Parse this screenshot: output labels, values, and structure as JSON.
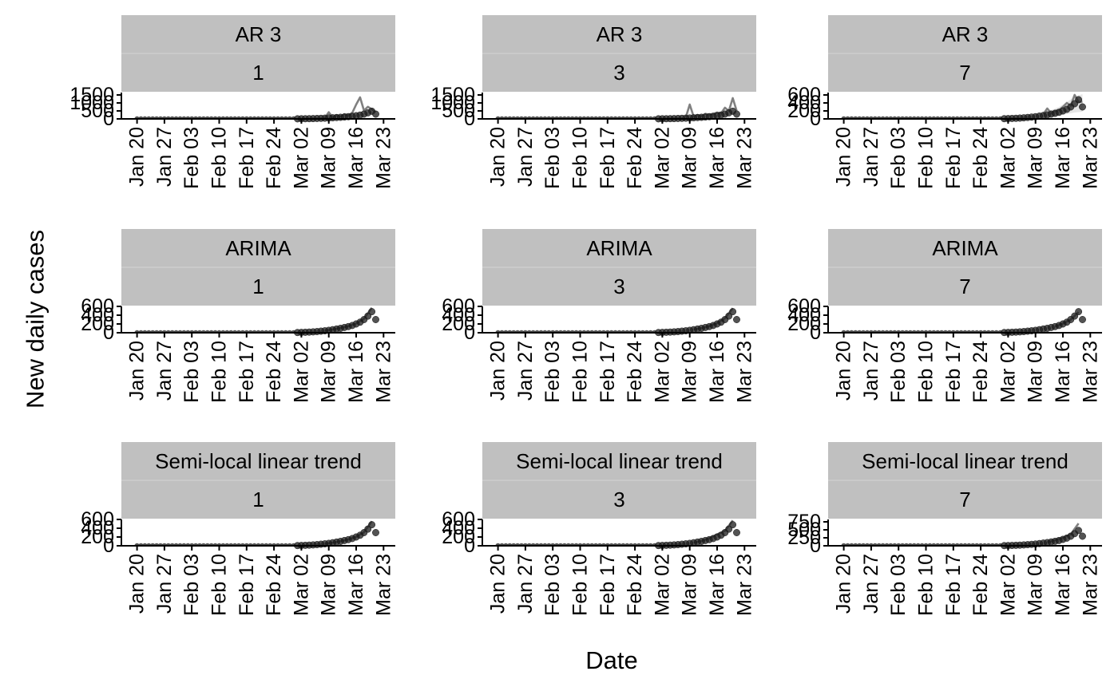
{
  "figure": {
    "ylabel": "New daily cases",
    "xlabel": "Date",
    "colors": {
      "strip": "#c0c0c0",
      "strip_separator": "#d4d4d4",
      "panel_background": "#ffffff",
      "axis": "#000000",
      "points": "#1a1a1a",
      "forecast_line": "#808080",
      "forecast_band": "#e6e6e6"
    }
  },
  "chart_data": [
    {
      "type": "line",
      "strip_top": "AR 3",
      "strip_bottom": "1",
      "x_ticks": [
        "Jan 20",
        "Jan 27",
        "Feb 03",
        "Feb 10",
        "Feb 17",
        "Feb 24",
        "Mar 02",
        "Mar 09",
        "Mar 16",
        "Mar 23"
      ],
      "y_ticks": [
        0,
        500,
        1000,
        1500
      ],
      "y_tick_labels": [
        "0",
        "500",
        "1000",
        "1500"
      ],
      "ylim": [
        0,
        1650
      ],
      "series": [
        {
          "role": "observed",
          "display": "points",
          "x": [
            "2020-03-01",
            "2020-03-02",
            "2020-03-03",
            "2020-03-04",
            "2020-03-05",
            "2020-03-06",
            "2020-03-07",
            "2020-03-08",
            "2020-03-09",
            "2020-03-10",
            "2020-03-11",
            "2020-03-12",
            "2020-03-13",
            "2020-03-14",
            "2020-03-15",
            "2020-03-16",
            "2020-03-17",
            "2020-03-18",
            "2020-03-19",
            "2020-03-20",
            "2020-03-21"
          ],
          "y": [
            5,
            8,
            11,
            15,
            20,
            27,
            36,
            45,
            55,
            70,
            85,
            100,
            120,
            140,
            165,
            200,
            240,
            300,
            380,
            480,
            300
          ]
        },
        {
          "role": "forecast",
          "display": "line",
          "x": [
            "2020-03-08",
            "2020-03-09",
            "2020-03-10",
            "2020-03-11",
            "2020-03-12",
            "2020-03-13",
            "2020-03-14",
            "2020-03-15",
            "2020-03-16",
            "2020-03-17",
            "2020-03-18",
            "2020-03-19",
            "2020-03-20",
            "2020-03-21"
          ],
          "y": [
            60,
            420,
            80,
            240,
            150,
            300,
            220,
            380,
            900,
            1350,
            520,
            760,
            600,
            420
          ]
        }
      ]
    },
    {
      "type": "line",
      "strip_top": "AR 3",
      "strip_bottom": "3",
      "x_ticks": [
        "Jan 20",
        "Jan 27",
        "Feb 03",
        "Feb 10",
        "Feb 17",
        "Feb 24",
        "Mar 02",
        "Mar 09",
        "Mar 16",
        "Mar 23"
      ],
      "y_ticks": [
        0,
        500,
        1000,
        1500
      ],
      "y_tick_labels": [
        "0",
        "500",
        "1000",
        "1500"
      ],
      "ylim": [
        0,
        1650
      ],
      "series": [
        {
          "role": "observed",
          "display": "points",
          "x": [
            "2020-03-01",
            "2020-03-02",
            "2020-03-03",
            "2020-03-04",
            "2020-03-05",
            "2020-03-06",
            "2020-03-07",
            "2020-03-08",
            "2020-03-09",
            "2020-03-10",
            "2020-03-11",
            "2020-03-12",
            "2020-03-13",
            "2020-03-14",
            "2020-03-15",
            "2020-03-16",
            "2020-03-17",
            "2020-03-18",
            "2020-03-19",
            "2020-03-20",
            "2020-03-21"
          ],
          "y": [
            5,
            8,
            11,
            15,
            20,
            27,
            36,
            45,
            55,
            70,
            85,
            100,
            120,
            140,
            165,
            200,
            240,
            300,
            380,
            480,
            300
          ]
        },
        {
          "role": "forecast",
          "display": "line",
          "x": [
            "2020-03-08",
            "2020-03-09",
            "2020-03-10",
            "2020-03-11",
            "2020-03-12",
            "2020-03-13",
            "2020-03-14",
            "2020-03-15",
            "2020-03-16",
            "2020-03-17",
            "2020-03-18",
            "2020-03-19",
            "2020-03-20",
            "2020-03-21"
          ],
          "y": [
            100,
            900,
            150,
            250,
            180,
            320,
            260,
            300,
            400,
            350,
            700,
            500,
            1300,
            500
          ]
        }
      ]
    },
    {
      "type": "line",
      "strip_top": "AR 3",
      "strip_bottom": "7",
      "x_ticks": [
        "Jan 20",
        "Jan 27",
        "Feb 03",
        "Feb 10",
        "Feb 17",
        "Feb 24",
        "Mar 02",
        "Mar 09",
        "Mar 16",
        "Mar 23"
      ],
      "y_ticks": [
        0,
        200,
        400,
        600
      ],
      "y_tick_labels": [
        "0",
        "200",
        "400",
        "600"
      ],
      "ylim": [
        0,
        660
      ],
      "series": [
        {
          "role": "observed",
          "display": "points",
          "x": [
            "2020-03-01",
            "2020-03-02",
            "2020-03-03",
            "2020-03-04",
            "2020-03-05",
            "2020-03-06",
            "2020-03-07",
            "2020-03-08",
            "2020-03-09",
            "2020-03-10",
            "2020-03-11",
            "2020-03-12",
            "2020-03-13",
            "2020-03-14",
            "2020-03-15",
            "2020-03-16",
            "2020-03-17",
            "2020-03-18",
            "2020-03-19",
            "2020-03-20",
            "2020-03-21"
          ],
          "y": [
            5,
            8,
            11,
            15,
            20,
            27,
            36,
            45,
            55,
            70,
            85,
            100,
            120,
            140,
            165,
            200,
            240,
            300,
            380,
            480,
            300
          ]
        },
        {
          "role": "forecast",
          "display": "line",
          "x": [
            "2020-03-11",
            "2020-03-12",
            "2020-03-13",
            "2020-03-14",
            "2020-03-15",
            "2020-03-16",
            "2020-03-17",
            "2020-03-18",
            "2020-03-19",
            "2020-03-20",
            "2020-03-21"
          ],
          "y": [
            120,
            260,
            140,
            200,
            220,
            300,
            400,
            330,
            600,
            420,
            430
          ]
        },
        {
          "role": "forecast_interval",
          "display": "band",
          "x": [
            "2020-03-11",
            "2020-03-13",
            "2020-03-15",
            "2020-03-17",
            "2020-03-19",
            "2020-03-21"
          ],
          "lower": [
            40,
            60,
            80,
            120,
            160,
            180
          ],
          "upper": [
            160,
            220,
            300,
            420,
            560,
            620
          ]
        }
      ]
    },
    {
      "type": "line",
      "strip_top": "ARIMA",
      "strip_bottom": "1",
      "x_ticks": [
        "Jan 20",
        "Jan 27",
        "Feb 03",
        "Feb 10",
        "Feb 17",
        "Feb 24",
        "Mar 02",
        "Mar 09",
        "Mar 16",
        "Mar 23"
      ],
      "y_ticks": [
        0,
        200,
        400,
        600
      ],
      "y_tick_labels": [
        "0",
        "200",
        "400",
        "600"
      ],
      "ylim": [
        0,
        600
      ],
      "series": [
        {
          "role": "observed",
          "display": "points",
          "x": [
            "2020-03-01",
            "2020-03-02",
            "2020-03-03",
            "2020-03-04",
            "2020-03-05",
            "2020-03-06",
            "2020-03-07",
            "2020-03-08",
            "2020-03-09",
            "2020-03-10",
            "2020-03-11",
            "2020-03-12",
            "2020-03-13",
            "2020-03-14",
            "2020-03-15",
            "2020-03-16",
            "2020-03-17",
            "2020-03-18",
            "2020-03-19",
            "2020-03-20",
            "2020-03-21"
          ],
          "y": [
            5,
            8,
            11,
            15,
            20,
            27,
            36,
            45,
            55,
            70,
            85,
            100,
            120,
            140,
            165,
            200,
            240,
            300,
            380,
            480,
            300
          ]
        },
        {
          "role": "forecast",
          "display": "line",
          "x": [
            "2020-03-08",
            "2020-03-10",
            "2020-03-12",
            "2020-03-14",
            "2020-03-16",
            "2020-03-18",
            "2020-03-20"
          ],
          "y": [
            50,
            75,
            110,
            150,
            210,
            320,
            570
          ]
        }
      ]
    },
    {
      "type": "line",
      "strip_top": "ARIMA",
      "strip_bottom": "3",
      "x_ticks": [
        "Jan 20",
        "Jan 27",
        "Feb 03",
        "Feb 10",
        "Feb 17",
        "Feb 24",
        "Mar 02",
        "Mar 09",
        "Mar 16",
        "Mar 23"
      ],
      "y_ticks": [
        0,
        200,
        400,
        600
      ],
      "y_tick_labels": [
        "0",
        "200",
        "400",
        "600"
      ],
      "ylim": [
        0,
        600
      ],
      "series": [
        {
          "role": "observed",
          "display": "points",
          "x": [
            "2020-03-01",
            "2020-03-02",
            "2020-03-03",
            "2020-03-04",
            "2020-03-05",
            "2020-03-06",
            "2020-03-07",
            "2020-03-08",
            "2020-03-09",
            "2020-03-10",
            "2020-03-11",
            "2020-03-12",
            "2020-03-13",
            "2020-03-14",
            "2020-03-15",
            "2020-03-16",
            "2020-03-17",
            "2020-03-18",
            "2020-03-19",
            "2020-03-20",
            "2020-03-21"
          ],
          "y": [
            5,
            8,
            11,
            15,
            20,
            27,
            36,
            45,
            55,
            70,
            85,
            100,
            120,
            140,
            165,
            200,
            240,
            300,
            380,
            480,
            300
          ]
        },
        {
          "role": "forecast",
          "display": "line",
          "x": [
            "2020-03-10",
            "2020-03-12",
            "2020-03-14",
            "2020-03-16",
            "2020-03-18",
            "2020-03-20"
          ],
          "y": [
            75,
            105,
            150,
            220,
            330,
            560
          ]
        }
      ]
    },
    {
      "type": "line",
      "strip_top": "ARIMA",
      "strip_bottom": "7",
      "x_ticks": [
        "Jan 20",
        "Jan 27",
        "Feb 03",
        "Feb 10",
        "Feb 17",
        "Feb 24",
        "Mar 02",
        "Mar 09",
        "Mar 16",
        "Mar 23"
      ],
      "y_ticks": [
        0,
        200,
        400,
        600
      ],
      "y_tick_labels": [
        "0",
        "200",
        "400",
        "600"
      ],
      "ylim": [
        0,
        600
      ],
      "series": [
        {
          "role": "observed",
          "display": "points",
          "x": [
            "2020-03-01",
            "2020-03-02",
            "2020-03-03",
            "2020-03-04",
            "2020-03-05",
            "2020-03-06",
            "2020-03-07",
            "2020-03-08",
            "2020-03-09",
            "2020-03-10",
            "2020-03-11",
            "2020-03-12",
            "2020-03-13",
            "2020-03-14",
            "2020-03-15",
            "2020-03-16",
            "2020-03-17",
            "2020-03-18",
            "2020-03-19",
            "2020-03-20",
            "2020-03-21"
          ],
          "y": [
            5,
            8,
            11,
            15,
            20,
            27,
            36,
            45,
            55,
            70,
            85,
            100,
            120,
            140,
            165,
            200,
            240,
            300,
            380,
            480,
            300
          ]
        },
        {
          "role": "forecast",
          "display": "line",
          "x": [
            "2020-03-14",
            "2020-03-16",
            "2020-03-18",
            "2020-03-20"
          ],
          "y": [
            140,
            210,
            300,
            470
          ]
        }
      ]
    },
    {
      "type": "line",
      "strip_top": "Semi-local linear trend",
      "strip_bottom": "1",
      "x_ticks": [
        "Jan 20",
        "Jan 27",
        "Feb 03",
        "Feb 10",
        "Feb 17",
        "Feb 24",
        "Mar 02",
        "Mar 09",
        "Mar 16",
        "Mar 23"
      ],
      "y_ticks": [
        0,
        200,
        400,
        600
      ],
      "y_tick_labels": [
        "0",
        "200",
        "400",
        "600"
      ],
      "ylim": [
        0,
        600
      ],
      "series": [
        {
          "role": "observed",
          "display": "points",
          "x": [
            "2020-03-01",
            "2020-03-02",
            "2020-03-03",
            "2020-03-04",
            "2020-03-05",
            "2020-03-06",
            "2020-03-07",
            "2020-03-08",
            "2020-03-09",
            "2020-03-10",
            "2020-03-11",
            "2020-03-12",
            "2020-03-13",
            "2020-03-14",
            "2020-03-15",
            "2020-03-16",
            "2020-03-17",
            "2020-03-18",
            "2020-03-19",
            "2020-03-20",
            "2020-03-21"
          ],
          "y": [
            5,
            8,
            11,
            15,
            20,
            27,
            36,
            45,
            55,
            70,
            85,
            100,
            120,
            140,
            165,
            200,
            240,
            300,
            380,
            480,
            300
          ]
        },
        {
          "role": "forecast",
          "display": "line",
          "x": [
            "2020-03-08",
            "2020-03-10",
            "2020-03-12",
            "2020-03-14",
            "2020-03-16",
            "2020-03-18",
            "2020-03-20"
          ],
          "y": [
            48,
            72,
            105,
            145,
            205,
            310,
            560
          ]
        }
      ]
    },
    {
      "type": "line",
      "strip_top": "Semi-local linear trend",
      "strip_bottom": "3",
      "x_ticks": [
        "Jan 20",
        "Jan 27",
        "Feb 03",
        "Feb 10",
        "Feb 17",
        "Feb 24",
        "Mar 02",
        "Mar 09",
        "Mar 16",
        "Mar 23"
      ],
      "y_ticks": [
        0,
        200,
        400,
        600
      ],
      "y_tick_labels": [
        "0",
        "200",
        "400",
        "600"
      ],
      "ylim": [
        0,
        600
      ],
      "series": [
        {
          "role": "observed",
          "display": "points",
          "x": [
            "2020-03-01",
            "2020-03-02",
            "2020-03-03",
            "2020-03-04",
            "2020-03-05",
            "2020-03-06",
            "2020-03-07",
            "2020-03-08",
            "2020-03-09",
            "2020-03-10",
            "2020-03-11",
            "2020-03-12",
            "2020-03-13",
            "2020-03-14",
            "2020-03-15",
            "2020-03-16",
            "2020-03-17",
            "2020-03-18",
            "2020-03-19",
            "2020-03-20",
            "2020-03-21"
          ],
          "y": [
            5,
            8,
            11,
            15,
            20,
            27,
            36,
            45,
            55,
            70,
            85,
            100,
            120,
            140,
            165,
            200,
            240,
            300,
            380,
            480,
            300
          ]
        },
        {
          "role": "forecast",
          "display": "line",
          "x": [
            "2020-03-10",
            "2020-03-12",
            "2020-03-14",
            "2020-03-16",
            "2020-03-18",
            "2020-03-20"
          ],
          "y": [
            72,
            110,
            170,
            260,
            340,
            580
          ]
        }
      ]
    },
    {
      "type": "line",
      "strip_top": "Semi-local linear trend",
      "strip_bottom": "7",
      "x_ticks": [
        "Jan 20",
        "Jan 27",
        "Feb 03",
        "Feb 10",
        "Feb 17",
        "Feb 24",
        "Mar 02",
        "Mar 09",
        "Mar 16",
        "Mar 23"
      ],
      "y_ticks": [
        0,
        250,
        500,
        750
      ],
      "y_tick_labels": [
        "0",
        "250",
        "500",
        "750"
      ],
      "ylim": [
        0,
        825
      ],
      "series": [
        {
          "role": "observed",
          "display": "points",
          "x": [
            "2020-03-01",
            "2020-03-02",
            "2020-03-03",
            "2020-03-04",
            "2020-03-05",
            "2020-03-06",
            "2020-03-07",
            "2020-03-08",
            "2020-03-09",
            "2020-03-10",
            "2020-03-11",
            "2020-03-12",
            "2020-03-13",
            "2020-03-14",
            "2020-03-15",
            "2020-03-16",
            "2020-03-17",
            "2020-03-18",
            "2020-03-19",
            "2020-03-20",
            "2020-03-21"
          ],
          "y": [
            5,
            8,
            11,
            15,
            20,
            27,
            36,
            45,
            55,
            70,
            85,
            100,
            120,
            140,
            165,
            200,
            240,
            300,
            380,
            480,
            300
          ]
        },
        {
          "role": "forecast",
          "display": "line",
          "x": [
            "2020-03-12",
            "2020-03-14",
            "2020-03-16",
            "2020-03-18",
            "2020-03-20"
          ],
          "y": [
            110,
            180,
            250,
            360,
            700
          ]
        }
      ]
    }
  ]
}
